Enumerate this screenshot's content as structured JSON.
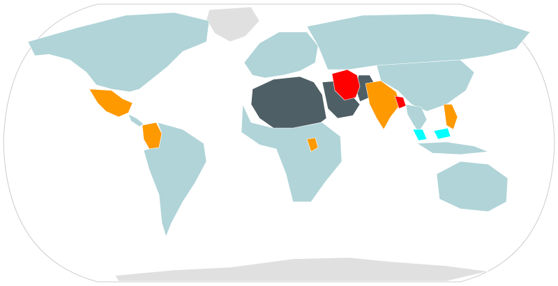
{
  "map": {
    "projection": "Robinson",
    "colors": {
      "background": "#ffffff",
      "ocean": "#ffffff",
      "graticule_edge": "#cccccc",
      "no_data": "#e0e0e0",
      "default": "#b0d4d8",
      "group_dark": "#4f5f66",
      "group_red": "#ff0000",
      "group_light_red": "#f08080",
      "group_orange": "#ff9900",
      "group_cyan": "#00ffff"
    },
    "regions": [
      {
        "name": "greenland",
        "category": "no_data"
      },
      {
        "name": "antarctica",
        "category": "no_data"
      },
      {
        "name": "north-america",
        "category": "default"
      },
      {
        "name": "mexico",
        "category": "group_orange"
      },
      {
        "name": "colombia",
        "category": "group_orange"
      },
      {
        "name": "south-america",
        "category": "default"
      },
      {
        "name": "europe",
        "category": "default"
      },
      {
        "name": "russia",
        "category": "default"
      },
      {
        "name": "north-africa-arab-states",
        "category": "group_dark"
      },
      {
        "name": "arabian-peninsula",
        "category": "group_dark"
      },
      {
        "name": "iran",
        "category": "group_red"
      },
      {
        "name": "afghanistan-pakistan",
        "category": "group_dark"
      },
      {
        "name": "india",
        "category": "group_orange"
      },
      {
        "name": "bangladesh",
        "category": "group_red"
      },
      {
        "name": "malaysia-brunei",
        "category": "group_cyan"
      },
      {
        "name": "philippines",
        "category": "group_orange"
      },
      {
        "name": "sub-saharan-africa",
        "category": "default"
      },
      {
        "name": "uganda",
        "category": "group_orange"
      },
      {
        "name": "australia",
        "category": "default"
      },
      {
        "name": "china-east-asia",
        "category": "default"
      }
    ]
  }
}
